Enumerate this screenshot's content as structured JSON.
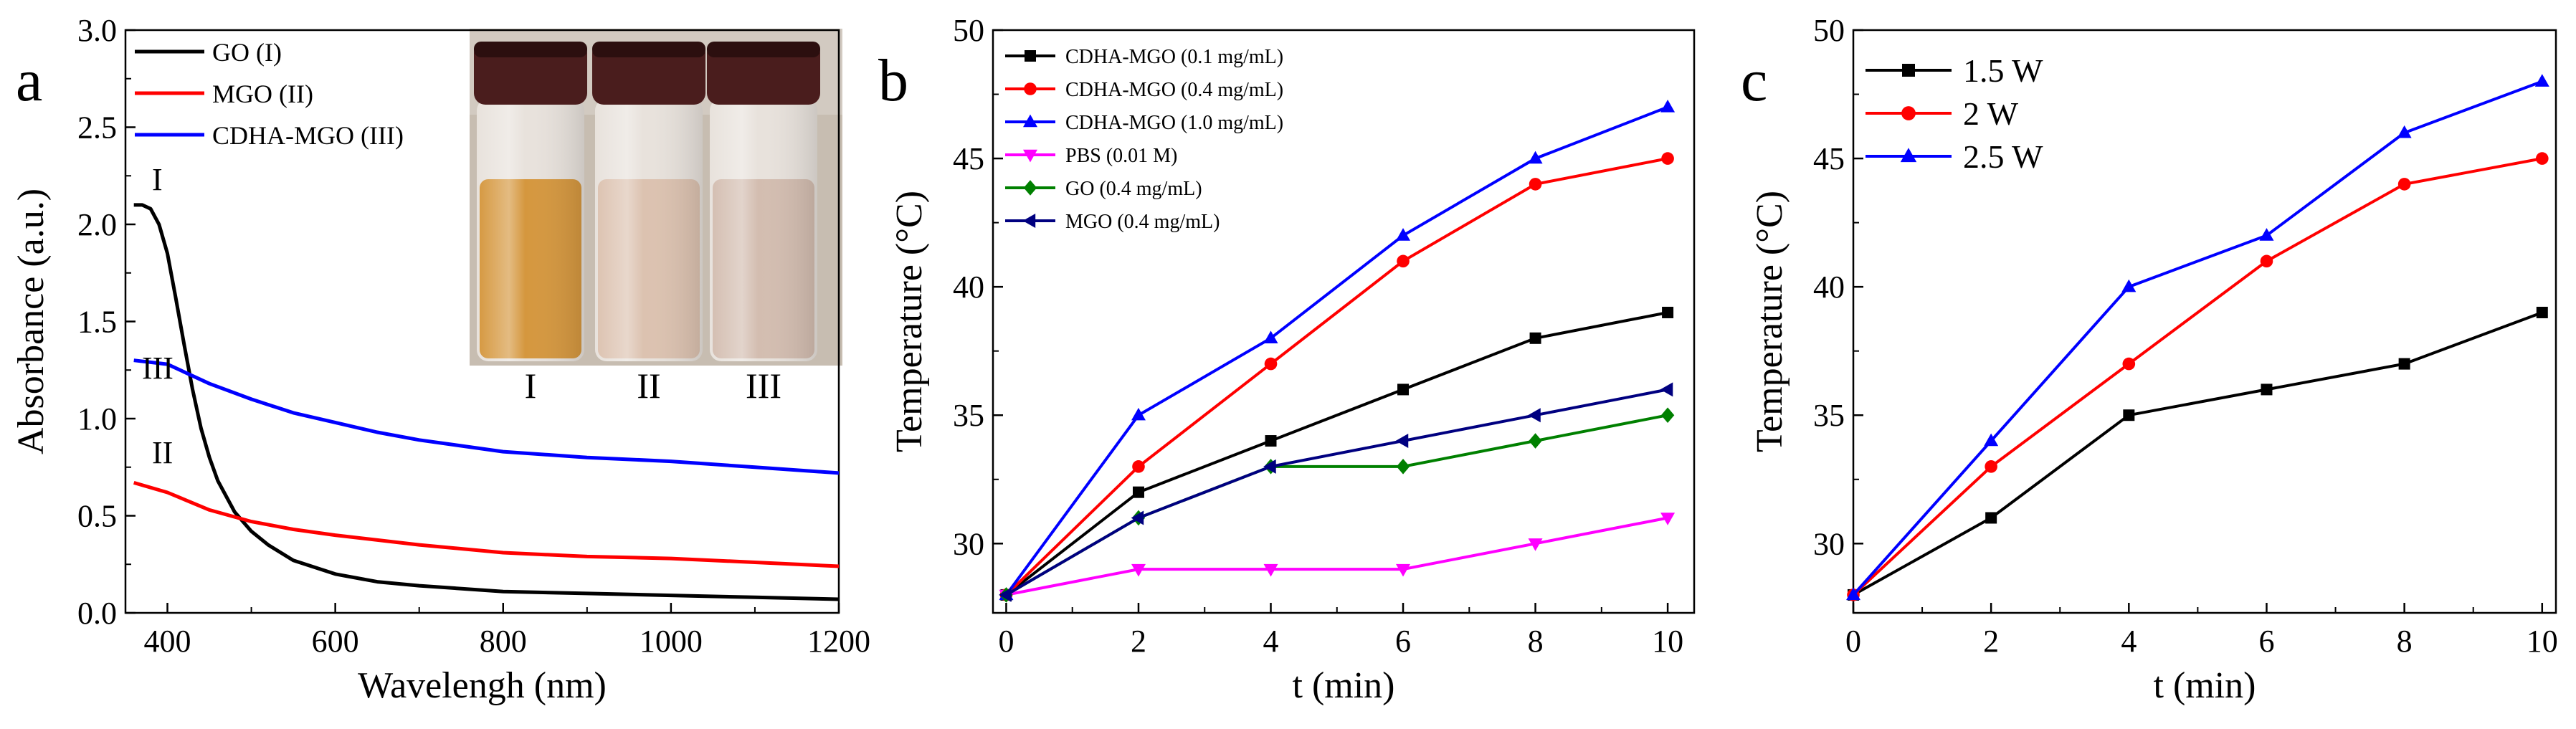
{
  "chart_data": [
    {
      "panel": "a",
      "type": "line",
      "xlabel": "Wavelengh (nm)",
      "ylabel": "Absorbance (a.u.)",
      "xlim": [
        350,
        1200
      ],
      "ylim": [
        0,
        3.0
      ],
      "xticks": [
        400,
        600,
        800,
        1000,
        1200
      ],
      "yticks": [
        0.0,
        0.5,
        1.0,
        1.5,
        2.0,
        2.5,
        3.0
      ],
      "xtick_labels": [
        "400",
        "600",
        "800",
        "1000",
        "1200"
      ],
      "ytick_labels": [
        "0.0",
        "0.5",
        "1.0",
        "1.5",
        "2.0",
        "2.5",
        "3.0"
      ],
      "legend_position": "top-left",
      "series": [
        {
          "name": "GO (I)",
          "color": "#000000",
          "curve_label": "I",
          "x": [
            360,
            370,
            380,
            390,
            400,
            410,
            420,
            430,
            440,
            450,
            460,
            480,
            500,
            520,
            550,
            600,
            650,
            700,
            800,
            900,
            1000,
            1100,
            1200
          ],
          "y": [
            2.1,
            2.1,
            2.08,
            2.0,
            1.85,
            1.62,
            1.38,
            1.15,
            0.95,
            0.8,
            0.68,
            0.52,
            0.42,
            0.35,
            0.27,
            0.2,
            0.16,
            0.14,
            0.11,
            0.1,
            0.09,
            0.08,
            0.07
          ]
        },
        {
          "name": "MGO (II)",
          "color": "#ff0000",
          "curve_label": "II",
          "x": [
            360,
            400,
            450,
            500,
            550,
            600,
            700,
            800,
            900,
            1000,
            1100,
            1200
          ],
          "y": [
            0.67,
            0.62,
            0.53,
            0.47,
            0.43,
            0.4,
            0.35,
            0.31,
            0.29,
            0.28,
            0.26,
            0.24
          ]
        },
        {
          "name": "CDHA-MGO (III)",
          "color": "#0000ff",
          "curve_label": "III",
          "x": [
            360,
            400,
            450,
            500,
            550,
            600,
            650,
            700,
            800,
            900,
            1000,
            1100,
            1200
          ],
          "y": [
            1.3,
            1.28,
            1.18,
            1.1,
            1.03,
            0.98,
            0.93,
            0.89,
            0.83,
            0.8,
            0.78,
            0.75,
            0.72
          ]
        }
      ],
      "inset": {
        "labels": [
          "I",
          "II",
          "III"
        ],
        "liquid_colors": [
          "#d5973e",
          "#dcc2b0",
          "#d3bdb0"
        ]
      }
    },
    {
      "panel": "b",
      "type": "line",
      "xlabel": "t (min)",
      "ylabel": "Temperature (°C)",
      "xlim": [
        -0.2,
        10.4
      ],
      "ylim": [
        27.3,
        50
      ],
      "xticks": [
        0,
        2,
        4,
        6,
        8,
        10
      ],
      "yticks": [
        30,
        35,
        40,
        45,
        50
      ],
      "xtick_labels": [
        "0",
        "2",
        "4",
        "6",
        "8",
        "10"
      ],
      "ytick_labels": [
        "30",
        "35",
        "40",
        "45",
        "50"
      ],
      "legend_position": "top-left",
      "x": [
        0,
        2,
        4,
        6,
        8,
        10
      ],
      "series": [
        {
          "name": "CDHA-MGO (0.1 mg/mL)",
          "color": "#000000",
          "marker": "square",
          "values": [
            28,
            32,
            34,
            36,
            38,
            39
          ]
        },
        {
          "name": "CDHA-MGO (0.4 mg/mL)",
          "color": "#ff0000",
          "marker": "circle",
          "values": [
            28,
            33,
            37,
            41,
            44,
            45
          ]
        },
        {
          "name": "CDHA-MGO (1.0 mg/mL)",
          "color": "#0000ff",
          "marker": "triangle-up",
          "values": [
            28,
            35,
            38,
            42,
            45,
            47
          ]
        },
        {
          "name": "PBS   (0.01 M)",
          "color": "#ff00ff",
          "marker": "triangle-down",
          "values": [
            28,
            29,
            29,
            29,
            30,
            31
          ]
        },
        {
          "name": "GO    (0.4 mg/mL)",
          "color": "#008000",
          "marker": "diamond",
          "values": [
            28,
            31,
            33,
            33,
            34,
            35
          ]
        },
        {
          "name": "MGO (0.4 mg/mL)",
          "color": "#000080",
          "marker": "triangle-left",
          "values": [
            28,
            31,
            33,
            34,
            35,
            36
          ]
        }
      ]
    },
    {
      "panel": "c",
      "type": "line",
      "xlabel": "t (min)",
      "ylabel": "Temperature (°C)",
      "xlim": [
        0,
        10.2
      ],
      "ylim": [
        27.3,
        50
      ],
      "xticks": [
        0,
        2,
        4,
        6,
        8,
        10
      ],
      "yticks": [
        30,
        35,
        40,
        45,
        50
      ],
      "xtick_labels": [
        "0",
        "2",
        "4",
        "6",
        "8",
        "10"
      ],
      "ytick_labels": [
        "30",
        "35",
        "40",
        "45",
        "50"
      ],
      "legend_position": "top-left",
      "x": [
        0,
        2,
        4,
        6,
        8,
        10
      ],
      "series": [
        {
          "name": "1.5 W",
          "color": "#000000",
          "marker": "square",
          "values": [
            28,
            31,
            35,
            36,
            37,
            39
          ]
        },
        {
          "name": "2  W",
          "color": "#ff0000",
          "marker": "circle",
          "values": [
            28,
            33,
            37,
            41,
            44,
            45
          ]
        },
        {
          "name": "2.5 W",
          "color": "#0000ff",
          "marker": "triangle-up",
          "values": [
            28,
            34,
            40,
            42,
            46,
            48
          ]
        }
      ]
    }
  ]
}
